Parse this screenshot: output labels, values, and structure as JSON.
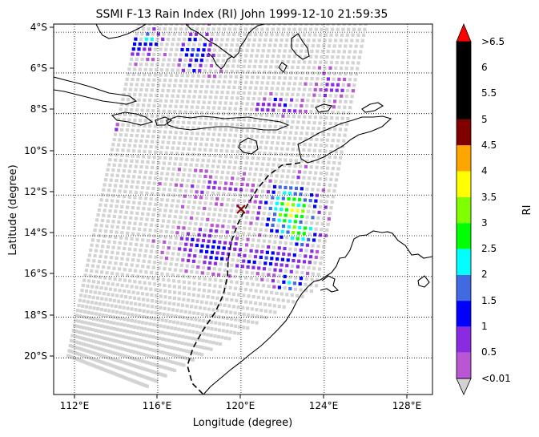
{
  "title": "SSMI F-13 Rain Index (RI) John 1999-12-10 21:59:35",
  "map": {
    "xlabel": "Longitude (degree)",
    "ylabel": "Latitude (degree)",
    "lon_range": [
      111,
      129.2
    ],
    "lat_range": [
      -21.8,
      -3.6
    ],
    "lon_ticks": [
      "112°E",
      "116°E",
      "120°E",
      "124°E",
      "128°E"
    ],
    "lat_ticks": [
      "4°S",
      "6°S",
      "8°S",
      "10°S",
      "12°S",
      "14°S",
      "16°S",
      "18°S",
      "20°S"
    ],
    "grid": "dotted",
    "storm_center": {
      "lon": 120.0,
      "lat": -12.8,
      "marker": "x",
      "color": "#8b0000"
    },
    "swath_corners_lon_lat": [
      [
        115.1,
        -3.6
      ],
      [
        126.0,
        -3.6
      ],
      [
        123.6,
        -16.6
      ],
      [
        115.5,
        -21.4
      ],
      [
        111.7,
        -19.9
      ]
    ],
    "swath_point_color": "#d3d3d3"
  },
  "colorbar": {
    "label": "RI",
    "tick_labels": [
      "<0.01",
      "0.5",
      "1",
      "1.5",
      "2",
      "2.5",
      "3",
      "3.5",
      "4",
      "4.5",
      "5",
      "5.5",
      "6",
      ">6.5"
    ],
    "bands": [
      {
        "from": "0.01",
        "to": "0.5",
        "color": "#ba55d3"
      },
      {
        "from": "0.5",
        "to": "1",
        "color": "#8a2be2"
      },
      {
        "from": "1",
        "to": "1.5",
        "color": "#0000ff"
      },
      {
        "from": "1.5",
        "to": "2",
        "color": "#4169e1"
      },
      {
        "from": "2",
        "to": "2.5",
        "color": "#00ffff"
      },
      {
        "from": "2.5",
        "to": "3",
        "color": "#00ff00"
      },
      {
        "from": "3",
        "to": "3.5",
        "color": "#7fff00"
      },
      {
        "from": "3.5",
        "to": "4",
        "color": "#ffff00"
      },
      {
        "from": "4",
        "to": "4.5",
        "color": "#ffa500"
      },
      {
        "from": "4.5",
        "to": "5",
        "color": "#800000"
      },
      {
        "from": "5",
        "to": "6.5",
        "color": "#000000"
      }
    ],
    "under_color": "#d3d3d3",
    "over_color": "#ff0000"
  },
  "chart_data": {
    "type": "heatmap",
    "title": "SSMI F-13 Rain Index (RI) John 1999-12-10 21:59:35",
    "xlabel": "Longitude (degree)",
    "ylabel": "Latitude (degree)",
    "xlim": [
      111,
      129.2
    ],
    "ylim": [
      -21.8,
      -3.6
    ],
    "value_label": "RI",
    "rain_clusters": [
      {
        "lon": 114.3,
        "lat": -4.6,
        "spread": [
          0.9,
          0.6
        ],
        "peak": 1.6,
        "density": 0.55
      },
      {
        "lon": 115.6,
        "lat": -4.3,
        "spread": [
          0.4,
          0.3
        ],
        "peak": 2.2,
        "density": 0.7
      },
      {
        "lon": 117.8,
        "lat": -5.0,
        "spread": [
          0.7,
          0.9
        ],
        "peak": 1.4,
        "density": 0.5
      },
      {
        "lon": 121.8,
        "lat": -7.6,
        "spread": [
          0.8,
          0.35
        ],
        "peak": 1.2,
        "density": 0.7
      },
      {
        "lon": 124.3,
        "lat": -6.8,
        "spread": [
          0.8,
          0.6
        ],
        "peak": 0.7,
        "density": 0.45
      },
      {
        "lon": 113.4,
        "lat": -8.7,
        "spread": [
          0.5,
          0.2
        ],
        "peak": 1.7,
        "density": 0.7
      },
      {
        "lon": 122.4,
        "lat": -12.8,
        "spread": [
          0.9,
          1.0
        ],
        "peak": 3.3,
        "density": 0.9
      },
      {
        "lon": 122.8,
        "lat": -13.8,
        "spread": [
          0.6,
          0.5
        ],
        "peak": 3.0,
        "density": 0.95
      },
      {
        "lon": 121.5,
        "lat": -15.1,
        "spread": [
          1.5,
          0.5
        ],
        "peak": 1.3,
        "density": 0.85
      },
      {
        "lon": 118.4,
        "lat": -14.6,
        "spread": [
          1.2,
          0.8
        ],
        "peak": 1.2,
        "density": 0.75
      },
      {
        "lon": 118.8,
        "lat": -11.7,
        "spread": [
          1.8,
          0.6
        ],
        "peak": 0.6,
        "density": 0.4
      },
      {
        "lon": 122.5,
        "lat": -16.3,
        "spread": [
          0.6,
          0.3
        ],
        "peak": 2.2,
        "density": 0.6
      }
    ]
  }
}
